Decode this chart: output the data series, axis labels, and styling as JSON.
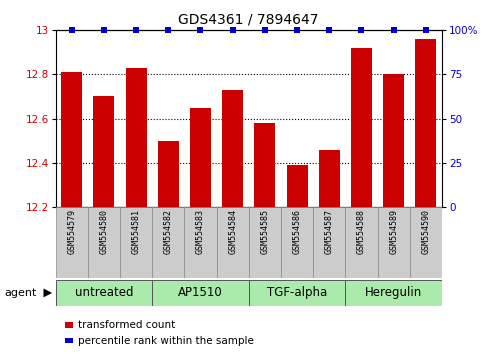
{
  "title": "GDS4361 / 7894647",
  "samples": [
    "GSM554579",
    "GSM554580",
    "GSM554581",
    "GSM554582",
    "GSM554583",
    "GSM554584",
    "GSM554585",
    "GSM554586",
    "GSM554587",
    "GSM554588",
    "GSM554589",
    "GSM554590"
  ],
  "bar_values": [
    12.81,
    12.7,
    12.83,
    12.5,
    12.65,
    12.73,
    12.58,
    12.39,
    12.46,
    12.92,
    12.8,
    12.96
  ],
  "percentile_values": [
    100,
    100,
    100,
    100,
    100,
    100,
    100,
    100,
    100,
    100,
    100,
    100
  ],
  "bar_color": "#cc0000",
  "percentile_color": "#0000cc",
  "bar_baseline": 12.2,
  "ylim_left": [
    12.2,
    13.0
  ],
  "ylim_right": [
    0,
    100
  ],
  "yticks_left": [
    12.2,
    12.4,
    12.6,
    12.8,
    13.0
  ],
  "ytick_labels_left": [
    "12.2",
    "12.4",
    "12.6",
    "12.8",
    "13"
  ],
  "yticks_right": [
    0,
    25,
    50,
    75,
    100
  ],
  "ytick_labels_right": [
    "0",
    "25",
    "50",
    "75",
    "100%"
  ],
  "groups": [
    {
      "label": "untreated",
      "start": 0,
      "end": 3
    },
    {
      "label": "AP1510",
      "start": 3,
      "end": 6
    },
    {
      "label": "TGF-alpha",
      "start": 6,
      "end": 9
    },
    {
      "label": "Heregulin",
      "start": 9,
      "end": 12
    }
  ],
  "group_color_light": "#aaeaaa",
  "sample_bg_color": "#cccccc",
  "agent_label": "agent",
  "legend_bar_label": "transformed count",
  "legend_pct_label": "percentile rank within the sample",
  "title_fontsize": 10,
  "tick_fontsize": 7.5,
  "sample_fontsize": 6.0,
  "group_fontsize": 8.5
}
